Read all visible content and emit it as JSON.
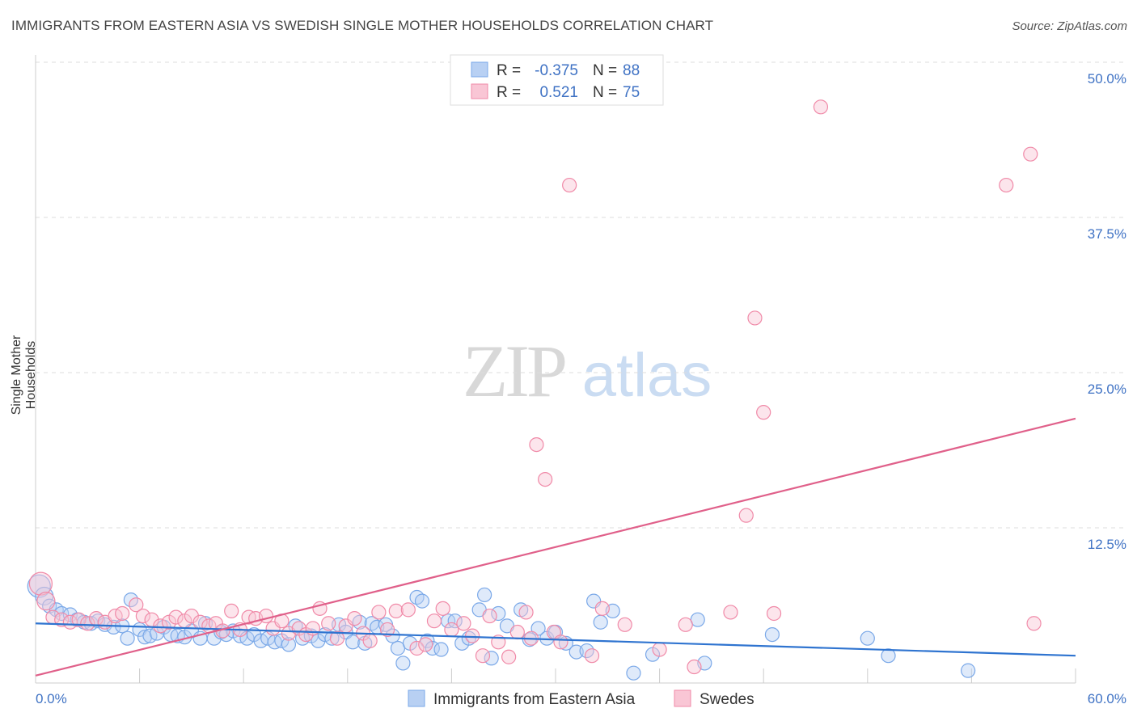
{
  "title": "IMMIGRANTS FROM EASTERN ASIA VS SWEDISH SINGLE MOTHER HOUSEHOLDS CORRELATION CHART",
  "source": "Source: ZipAtlas.com",
  "watermark": {
    "zip": "ZIP",
    "atlas": "atlas"
  },
  "colors": {
    "blue": "#7aa8e8",
    "blue_fill": "#b8d0f3",
    "blue_line": "#2f74d0",
    "pink": "#f08aa8",
    "pink_fill": "#f9c6d5",
    "pink_line": "#e0608a",
    "tick_label": "#3f72c4",
    "grid": "#dddddd"
  },
  "legend": {
    "r_label": "R =",
    "n_label": "N =",
    "series": [
      {
        "r": "-0.375",
        "n": "88"
      },
      {
        "r": "0.521",
        "n": "75"
      }
    ]
  },
  "chart_data": {
    "type": "scatter",
    "title": "IMMIGRANTS FROM EASTERN ASIA VS SWEDISH SINGLE MOTHER HOUSEHOLDS CORRELATION CHART",
    "xlabel": "",
    "ylabel": "Single Mother Households",
    "xlim": [
      0,
      60
    ],
    "ylim": [
      0,
      50
    ],
    "x_tick_labels": [
      "0.0%",
      "60.0%"
    ],
    "y_ticks": [
      12.5,
      25.0,
      37.5,
      50.0
    ],
    "y_tick_labels": [
      "12.5%",
      "25.0%",
      "37.5%",
      "50.0%"
    ],
    "grid": true,
    "legend_position": "bottom",
    "series": [
      {
        "name": "Immigrants from Eastern Asia",
        "color": "blue",
        "trend": {
          "x": [
            0,
            60
          ],
          "y": [
            4.8,
            2.2
          ]
        },
        "points": [
          [
            0.2,
            7.8
          ],
          [
            0.5,
            7.0
          ],
          [
            0.8,
            6.2
          ],
          [
            1.2,
            5.9
          ],
          [
            1.5,
            5.6
          ],
          [
            2.0,
            5.5
          ],
          [
            2.4,
            5.1
          ],
          [
            2.8,
            4.9
          ],
          [
            3.2,
            4.8
          ],
          [
            3.6,
            5.0
          ],
          [
            4.0,
            4.7
          ],
          [
            4.5,
            4.5
          ],
          [
            5.0,
            4.6
          ],
          [
            5.3,
            3.6
          ],
          [
            5.5,
            6.7
          ],
          [
            6.0,
            4.3
          ],
          [
            6.3,
            3.7
          ],
          [
            6.6,
            3.8
          ],
          [
            7.0,
            4.0
          ],
          [
            7.4,
            4.5
          ],
          [
            7.8,
            3.9
          ],
          [
            8.2,
            3.8
          ],
          [
            8.6,
            3.7
          ],
          [
            9.0,
            4.2
          ],
          [
            9.5,
            3.6
          ],
          [
            9.8,
            4.8
          ],
          [
            10.3,
            3.6
          ],
          [
            10.7,
            4.1
          ],
          [
            11.0,
            3.9
          ],
          [
            11.4,
            4.2
          ],
          [
            11.8,
            3.8
          ],
          [
            12.2,
            3.6
          ],
          [
            12.6,
            3.9
          ],
          [
            13.0,
            3.4
          ],
          [
            13.4,
            3.6
          ],
          [
            13.8,
            3.3
          ],
          [
            14.2,
            3.4
          ],
          [
            14.6,
            3.1
          ],
          [
            15.0,
            4.6
          ],
          [
            15.4,
            3.6
          ],
          [
            15.9,
            3.8
          ],
          [
            16.3,
            3.4
          ],
          [
            16.7,
            3.9
          ],
          [
            17.1,
            3.6
          ],
          [
            17.5,
            4.7
          ],
          [
            17.9,
            4.1
          ],
          [
            18.3,
            3.3
          ],
          [
            18.7,
            4.9
          ],
          [
            19.0,
            3.2
          ],
          [
            19.4,
            4.8
          ],
          [
            19.7,
            4.5
          ],
          [
            20.2,
            4.7
          ],
          [
            20.6,
            3.8
          ],
          [
            20.9,
            2.8
          ],
          [
            21.2,
            1.6
          ],
          [
            21.6,
            3.2
          ],
          [
            22.0,
            6.9
          ],
          [
            22.3,
            6.6
          ],
          [
            22.6,
            3.4
          ],
          [
            22.9,
            2.8
          ],
          [
            23.4,
            2.7
          ],
          [
            23.8,
            5.0
          ],
          [
            24.2,
            5.0
          ],
          [
            24.6,
            3.2
          ],
          [
            25.0,
            3.6
          ],
          [
            25.6,
            5.9
          ],
          [
            25.9,
            7.1
          ],
          [
            26.3,
            2.0
          ],
          [
            26.7,
            5.6
          ],
          [
            27.2,
            4.6
          ],
          [
            28.0,
            5.9
          ],
          [
            28.5,
            3.5
          ],
          [
            29.0,
            4.4
          ],
          [
            29.5,
            3.6
          ],
          [
            30.0,
            4.1
          ],
          [
            30.6,
            3.2
          ],
          [
            31.2,
            2.5
          ],
          [
            31.8,
            2.6
          ],
          [
            32.2,
            6.6
          ],
          [
            32.6,
            4.9
          ],
          [
            33.3,
            5.8
          ],
          [
            34.5,
            0.8
          ],
          [
            35.6,
            2.3
          ],
          [
            38.2,
            5.1
          ],
          [
            38.6,
            1.6
          ],
          [
            42.5,
            3.9
          ],
          [
            48.0,
            3.6
          ],
          [
            49.2,
            2.2
          ],
          [
            53.8,
            1.0
          ]
        ]
      },
      {
        "name": "Swedes",
        "color": "pink",
        "trend": {
          "x": [
            0,
            60
          ],
          "y": [
            0.6,
            21.3
          ]
        },
        "points": [
          [
            0.3,
            8.0
          ],
          [
            0.6,
            6.6
          ],
          [
            1.0,
            5.3
          ],
          [
            1.5,
            5.1
          ],
          [
            2.0,
            4.9
          ],
          [
            2.5,
            5.1
          ],
          [
            3.0,
            4.8
          ],
          [
            3.5,
            5.2
          ],
          [
            4.0,
            4.9
          ],
          [
            4.6,
            5.4
          ],
          [
            5.0,
            5.6
          ],
          [
            5.8,
            6.3
          ],
          [
            6.2,
            5.4
          ],
          [
            6.7,
            5.1
          ],
          [
            7.2,
            4.6
          ],
          [
            7.7,
            4.9
          ],
          [
            8.1,
            5.3
          ],
          [
            8.6,
            5.0
          ],
          [
            9.0,
            5.4
          ],
          [
            9.5,
            4.9
          ],
          [
            10.0,
            4.6
          ],
          [
            10.4,
            4.8
          ],
          [
            10.8,
            4.2
          ],
          [
            11.3,
            5.8
          ],
          [
            11.8,
            4.3
          ],
          [
            12.3,
            5.3
          ],
          [
            12.7,
            5.2
          ],
          [
            13.3,
            5.4
          ],
          [
            13.7,
            4.4
          ],
          [
            14.2,
            5.0
          ],
          [
            14.6,
            4.0
          ],
          [
            15.2,
            4.4
          ],
          [
            15.6,
            3.9
          ],
          [
            16.0,
            4.4
          ],
          [
            16.4,
            6.0
          ],
          [
            16.9,
            4.8
          ],
          [
            17.4,
            3.6
          ],
          [
            17.9,
            4.6
          ],
          [
            18.4,
            5.2
          ],
          [
            18.9,
            4.0
          ],
          [
            19.3,
            3.4
          ],
          [
            19.8,
            5.7
          ],
          [
            20.3,
            4.3
          ],
          [
            20.8,
            5.8
          ],
          [
            21.5,
            5.9
          ],
          [
            22.0,
            2.8
          ],
          [
            22.5,
            3.1
          ],
          [
            23.0,
            5.0
          ],
          [
            23.5,
            6.0
          ],
          [
            24.0,
            4.3
          ],
          [
            24.7,
            4.8
          ],
          [
            25.2,
            3.8
          ],
          [
            25.8,
            2.2
          ],
          [
            26.2,
            5.4
          ],
          [
            26.7,
            3.3
          ],
          [
            27.3,
            2.1
          ],
          [
            27.8,
            4.1
          ],
          [
            28.3,
            5.7
          ],
          [
            28.6,
            3.6
          ],
          [
            28.9,
            19.2
          ],
          [
            29.4,
            16.4
          ],
          [
            29.9,
            4.1
          ],
          [
            30.3,
            3.3
          ],
          [
            30.8,
            40.1
          ],
          [
            32.1,
            2.2
          ],
          [
            32.7,
            6.0
          ],
          [
            34.0,
            4.7
          ],
          [
            36.0,
            2.7
          ],
          [
            37.5,
            4.7
          ],
          [
            38.0,
            1.3
          ],
          [
            40.1,
            5.7
          ],
          [
            41.0,
            13.5
          ],
          [
            41.5,
            29.4
          ],
          [
            42.0,
            21.8
          ],
          [
            42.6,
            5.6
          ],
          [
            45.3,
            46.4
          ],
          [
            56.0,
            40.1
          ],
          [
            57.4,
            42.6
          ],
          [
            57.6,
            4.8
          ]
        ]
      }
    ]
  },
  "series_labels": {
    "blue": "Immigrants from Eastern Asia",
    "pink": "Swedes"
  }
}
